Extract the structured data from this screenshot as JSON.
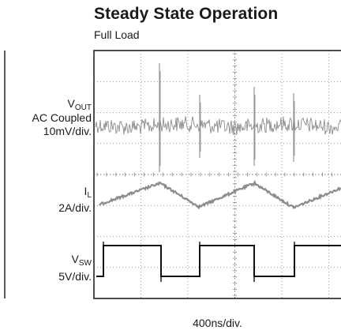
{
  "title": "Steady State Operation",
  "subtitle": "Full Load",
  "xlabel": "400ns/div.",
  "channels": {
    "vout": {
      "sym": "V",
      "sub": "OUT",
      "line2": "AC Coupled",
      "scale": "10mV/div."
    },
    "il": {
      "sym": "I",
      "sub": "L",
      "scale": "2A/div."
    },
    "vsw": {
      "sym": "V",
      "sub": "SW",
      "scale": "5V/div."
    }
  },
  "colors": {
    "trace_gray": "#8c8c8c",
    "trace_vsw": "#111111",
    "grid": "#777777",
    "frame": "#222222"
  },
  "chart_data": {
    "type": "line",
    "title": "Steady State Operation",
    "subtitle": "Full Load",
    "xlabel": "400ns/div.",
    "grid": true,
    "series": [
      {
        "name": "VOUT",
        "scale": "10mV/div."
      },
      {
        "name": "IL",
        "scale": "2A/div."
      },
      {
        "name": "VSW",
        "scale": "5V/div."
      }
    ]
  }
}
